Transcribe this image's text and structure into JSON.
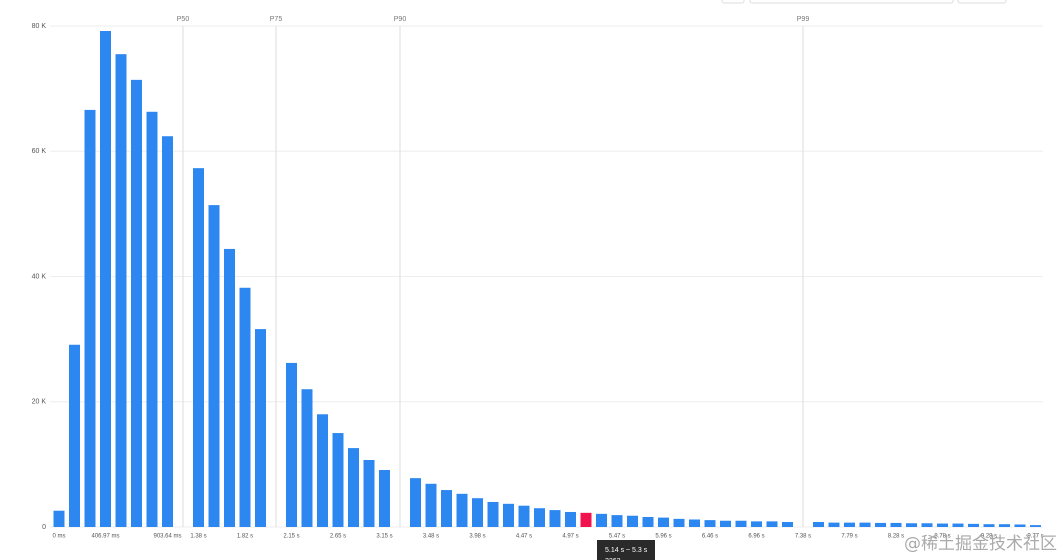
{
  "chart_data": {
    "type": "bar",
    "color": "#2d87f0",
    "colors": [
      "#2d87f0",
      "#2d87f0",
      "#2d87f0",
      "#2d87f0",
      "#2d87f0",
      "#2d87f0",
      "#2d87f0",
      "#2d87f0",
      "#2d87f0",
      "#2d87f0",
      "#2d87f0",
      "#2d87f0",
      "#2d87f0",
      "#2d87f0",
      "#2d87f0",
      "#2d87f0",
      "#2d87f0",
      "#2d87f0",
      "#2d87f0",
      "#2d87f0",
      "#2d87f0",
      "#2d87f0",
      "#2d87f0",
      "#2d87f0",
      "#2d87f0",
      "#2d87f0",
      "#2d87f0",
      "#2d87f0",
      "#2d87f0",
      "#2d87f0",
      "#2d87f0",
      "#2d87f0",
      "#2d87f0",
      "#2d87f0",
      "#f0134d",
      "#2d87f0",
      "#2d87f0",
      "#2d87f0",
      "#2d87f0",
      "#2d87f0",
      "#2d87f0",
      "#2d87f0",
      "#2d87f0",
      "#2d87f0",
      "#2d87f0",
      "#2d87f0",
      "#2d87f0",
      "#2d87f0",
      "#2d87f0",
      "#2d87f0",
      "#2d87f0",
      "#2d87f0",
      "#2d87f0",
      "#2d87f0",
      "#2d87f0",
      "#2d87f0",
      "#2d87f0",
      "#2d87f0",
      "#2d87f0",
      "#2d87f0",
      "#2d87f0",
      "#2d87f0",
      "#2d87f0",
      "#2d87f0"
    ],
    "categories": [
      "0 ms",
      null,
      null,
      "406.97 ms",
      null,
      null,
      null,
      "903.64 ms",
      null,
      "1.38 s",
      null,
      null,
      "1.82 s",
      null,
      null,
      "2.15 s",
      null,
      null,
      "2.65 s",
      null,
      null,
      "3.15 s",
      null,
      null,
      "3.48 s",
      null,
      null,
      "3.98 s",
      null,
      null,
      "4.47 s",
      null,
      null,
      "4.97 s",
      null,
      null,
      "5.47 s",
      null,
      null,
      "5.96 s",
      null,
      null,
      "6.46 s",
      null,
      null,
      "6.96 s",
      null,
      null,
      "7.38 s",
      null,
      null,
      "7.79 s",
      null,
      null,
      "8.28 s",
      null,
      null,
      "8.78 s",
      null,
      null,
      "9.28 s",
      null,
      null,
      "9.77 s"
    ],
    "markers": [
      null,
      null,
      null,
      null,
      null,
      null,
      null,
      null,
      "P50",
      null,
      null,
      null,
      null,
      null,
      "P75",
      null,
      null,
      null,
      null,
      null,
      null,
      null,
      "P90",
      null,
      null,
      null,
      null,
      null,
      null,
      null,
      null,
      null,
      null,
      null,
      null,
      null,
      null,
      null,
      null,
      null,
      null,
      null,
      null,
      null,
      null,
      null,
      null,
      null,
      "P99",
      null,
      null,
      null,
      null,
      null,
      null,
      null,
      null,
      null,
      null,
      null,
      null,
      null,
      null,
      null
    ],
    "values": [
      2600,
      29100,
      66600,
      79200,
      75500,
      71400,
      66300,
      62400,
      null,
      57300,
      51400,
      44400,
      38200,
      31600,
      null,
      26200,
      22000,
      18000,
      15000,
      12600,
      10700,
      9100,
      null,
      7800,
      6900,
      5900,
      5300,
      4600,
      4000,
      3700,
      3400,
      3000,
      2700,
      2400,
      2262,
      2100,
      1900,
      1800,
      1600,
      1500,
      1300,
      1200,
      1100,
      1000,
      1000,
      900,
      900,
      800,
      null,
      800,
      700,
      700,
      700,
      650,
      650,
      600,
      600,
      550,
      550,
      500,
      450,
      450,
      400,
      300
    ],
    "ylim": [
      0,
      80000
    ],
    "yticks": [
      0,
      {
        "value": 20000,
        "label": "20 K"
      },
      {
        "value": 40000,
        "label": "40 K"
      },
      {
        "value": 60000,
        "label": "60 K"
      },
      {
        "value": 80000,
        "label": "80 K"
      }
    ],
    "grid": true,
    "tooltip": "5.14 s ~ 5.3 s",
    "watermark": "@稀土掘金技术社区"
  }
}
